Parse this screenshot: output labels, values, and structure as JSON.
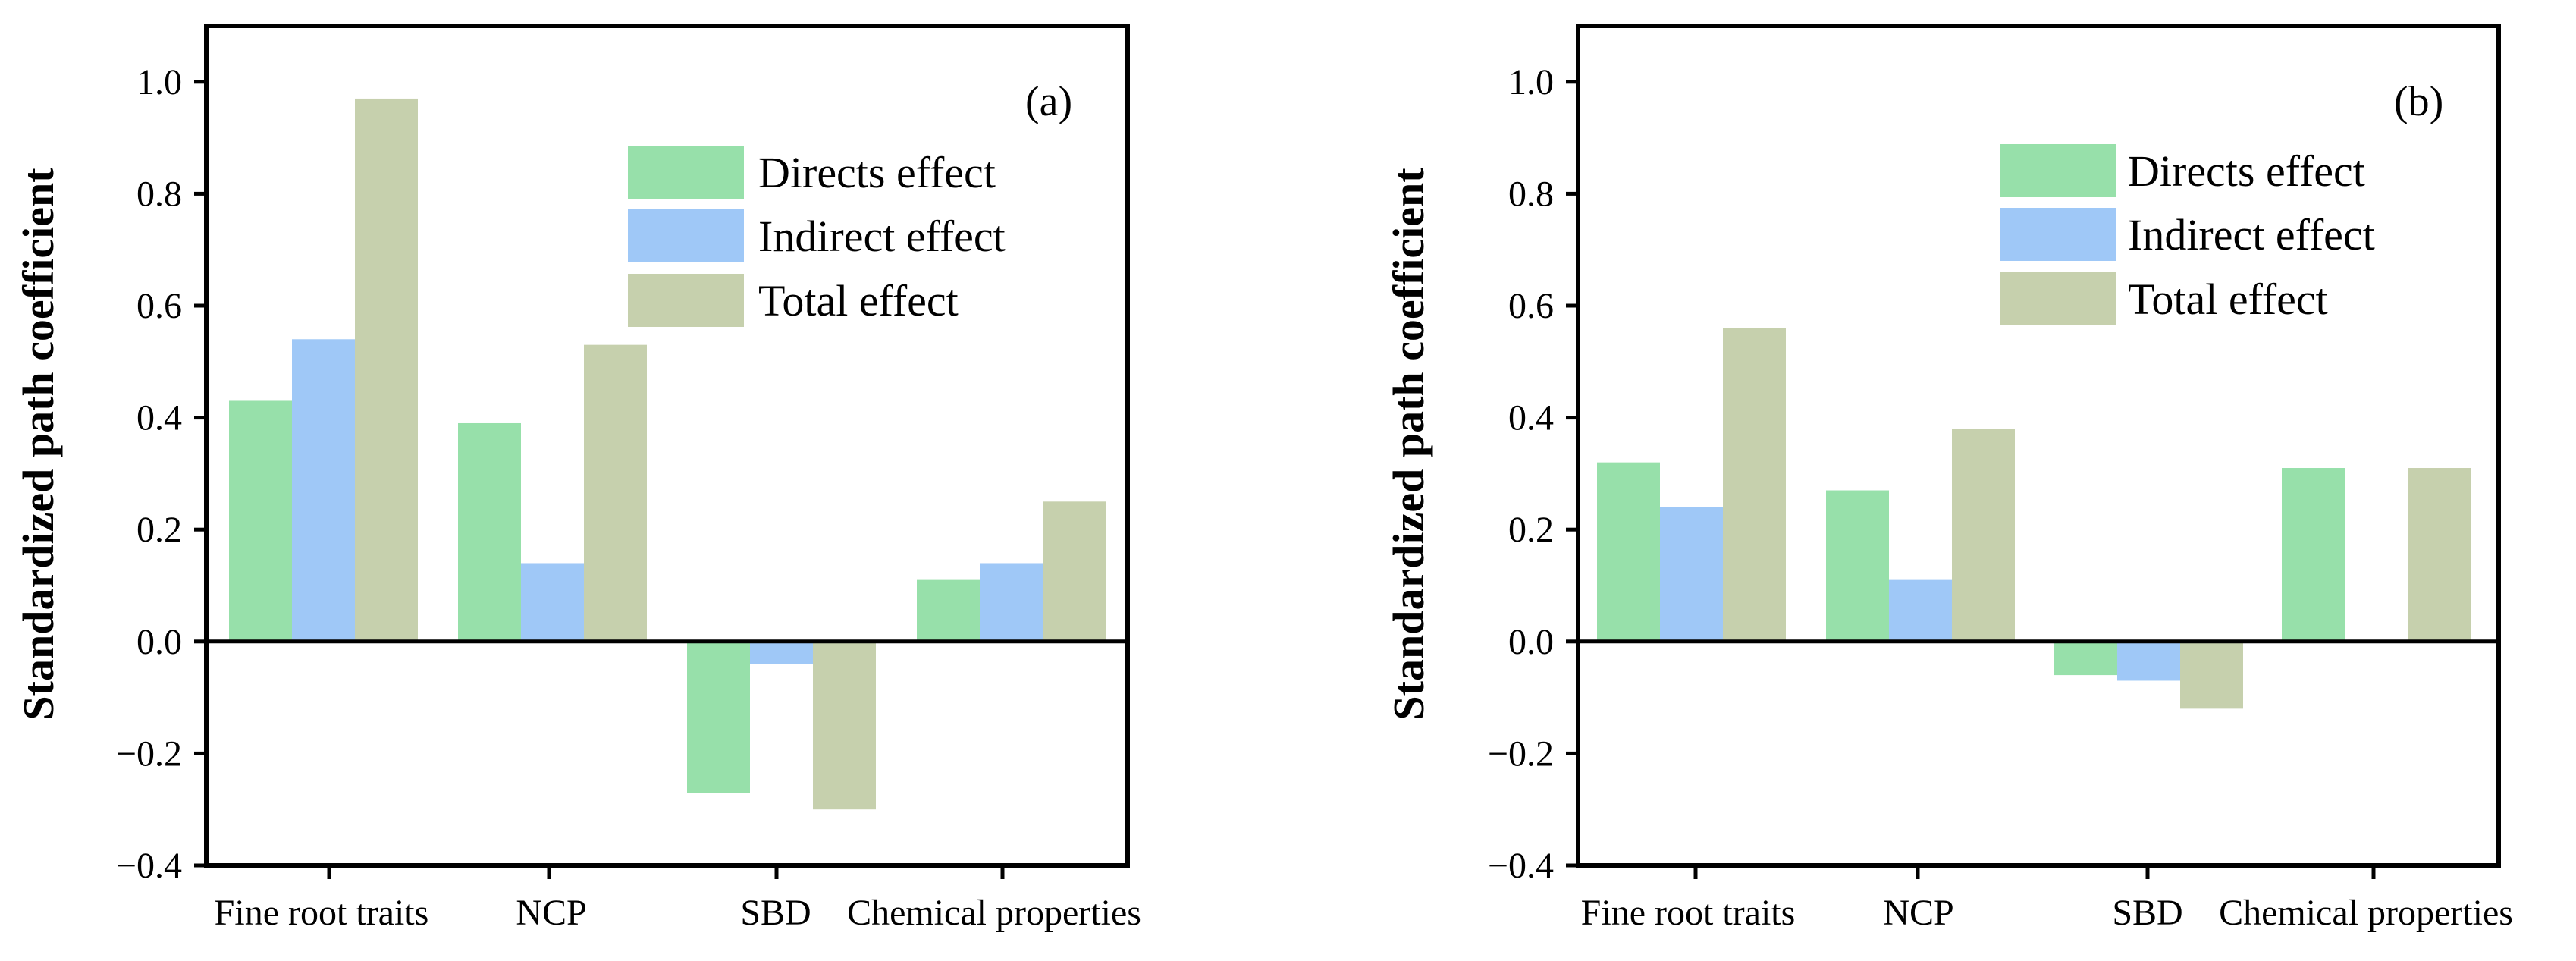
{
  "chart_data": [
    {
      "type": "bar",
      "panel_label": "(a)",
      "title": "",
      "xlabel": "",
      "ylabel": "Standardized path coefficient",
      "ylim": [
        -0.4,
        1.1
      ],
      "yticks": [
        -0.4,
        -0.2,
        0.0,
        0.2,
        0.4,
        0.6,
        0.8,
        1.0
      ],
      "ytick_labels": [
        "−0.4",
        "−0.2",
        "0.0",
        "0.2",
        "0.4",
        "0.6",
        "0.8",
        "1.0"
      ],
      "categories": [
        "Fine root traits",
        "NCP",
        "SBD",
        "Chemical properties"
      ],
      "series": [
        {
          "name": "Directs effect",
          "color": "#97e0aa",
          "values": [
            0.43,
            0.39,
            -0.27,
            0.11
          ]
        },
        {
          "name": "Indirect effect",
          "color": "#9fc8f7",
          "values": [
            0.54,
            0.14,
            -0.04,
            0.14
          ]
        },
        {
          "name": "Total effect",
          "color": "#c6d0ad",
          "values": [
            0.97,
            0.53,
            -0.3,
            0.25
          ]
        }
      ],
      "legend_position": "top-right",
      "grid": false
    },
    {
      "type": "bar",
      "panel_label": "(b)",
      "title": "",
      "xlabel": "",
      "ylabel": "Standardized path coefficient",
      "ylim": [
        -0.4,
        1.1
      ],
      "yticks": [
        -0.4,
        -0.2,
        0.0,
        0.2,
        0.4,
        0.6,
        0.8,
        1.0
      ],
      "ytick_labels": [
        "−0.4",
        "−0.2",
        "0.0",
        "0.2",
        "0.4",
        "0.6",
        "0.8",
        "1.0"
      ],
      "categories": [
        "Fine root traits",
        "NCP",
        "SBD",
        "Chemical properties"
      ],
      "series": [
        {
          "name": "Directs effect",
          "color": "#97e0aa",
          "values": [
            0.32,
            0.27,
            -0.06,
            0.31
          ]
        },
        {
          "name": "Indirect effect",
          "color": "#9fc8f7",
          "values": [
            0.24,
            0.11,
            -0.07,
            0.0
          ]
        },
        {
          "name": "Total effect",
          "color": "#c6d0ad",
          "values": [
            0.56,
            0.38,
            -0.12,
            0.31
          ]
        }
      ],
      "legend_position": "top-right",
      "grid": false
    }
  ]
}
